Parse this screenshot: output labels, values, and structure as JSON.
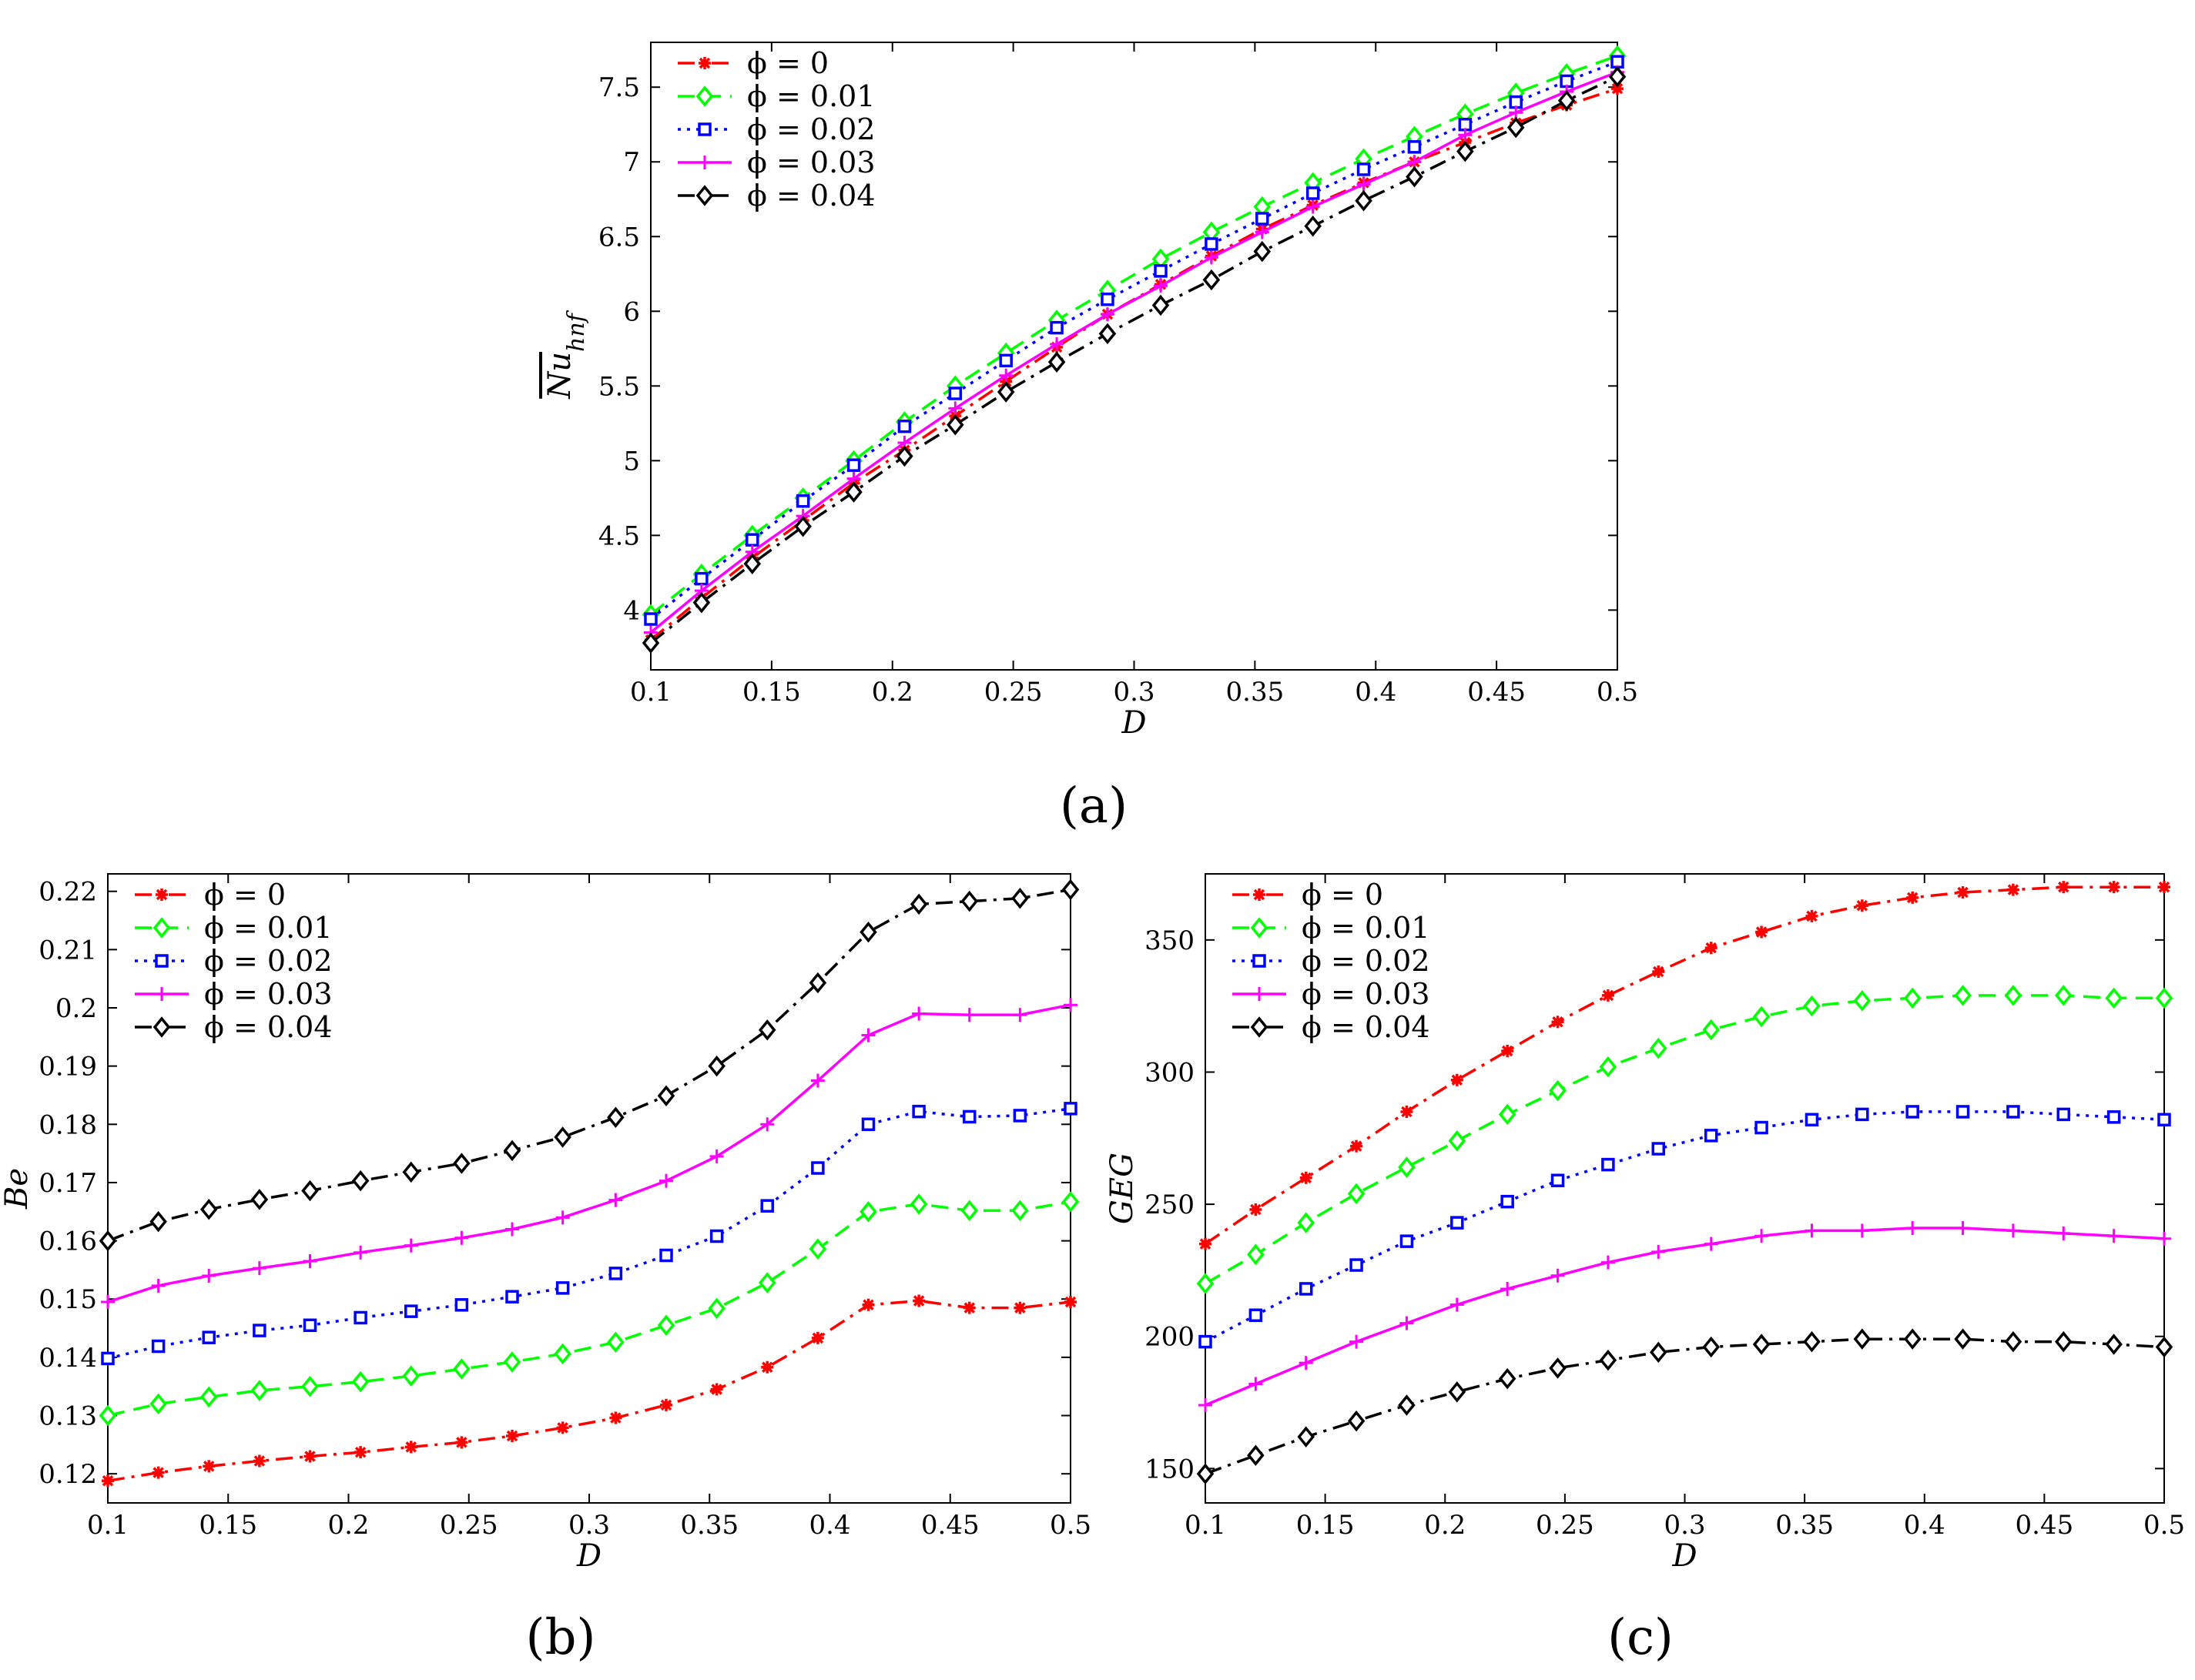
{
  "figure": {
    "legend_entries": [
      "ϕ = 0",
      "ϕ = 0.01",
      "ϕ = 0.02",
      "ϕ = 0.03",
      "ϕ = 0.04"
    ],
    "panel_labels": [
      "(a)",
      "(b)",
      "(c)"
    ]
  },
  "series_styles": [
    {
      "name": "ϕ = 0",
      "color": "#ff0000",
      "marker": "asterisk",
      "line": "dashdot"
    },
    {
      "name": "ϕ = 0.01",
      "color": "#00ff00",
      "marker": "diamond",
      "line": "dashed"
    },
    {
      "name": "ϕ = 0.02",
      "color": "#0000ff",
      "marker": "square",
      "line": "dotted"
    },
    {
      "name": "ϕ = 0.03",
      "color": "#ff00ff",
      "marker": "plus",
      "line": "solid"
    },
    {
      "name": "ϕ = 0.04",
      "color": "#000000",
      "marker": "diamond",
      "line": "dashdot"
    }
  ],
  "chart_data": [
    {
      "type": "line",
      "panel": "(a)",
      "title": "",
      "xlabel": "D",
      "ylabel": "Nu_hnf (overlined)",
      "ylabel_main": "Nu",
      "ylabel_sub": "hnf",
      "xlim": [
        0.1,
        0.5
      ],
      "ylim": [
        3.6,
        7.8
      ],
      "xticks": [
        0.1,
        0.15,
        0.2,
        0.25,
        0.3,
        0.35,
        0.4,
        0.45,
        0.5
      ],
      "xtick_labels": [
        "0.1",
        "0.15",
        "0.2",
        "0.25",
        "0.3",
        "0.35",
        "0.4",
        "0.45",
        "0.5"
      ],
      "yticks": [
        4,
        4.5,
        5,
        5.5,
        6,
        6.5,
        7,
        7.5
      ],
      "ytick_labels": [
        "4",
        "4.5",
        "5",
        "5.5",
        "6",
        "6.5",
        "7",
        "7.5"
      ],
      "legend": "top-left",
      "x": [
        0.1,
        0.121,
        0.142,
        0.163,
        0.184,
        0.205,
        0.226,
        0.247,
        0.268,
        0.289,
        0.311,
        0.332,
        0.353,
        0.374,
        0.395,
        0.416,
        0.437,
        0.458,
        0.479,
        0.5
      ],
      "series": [
        {
          "name": "ϕ = 0",
          "values": [
            3.8,
            4.08,
            4.35,
            4.6,
            4.85,
            5.07,
            5.3,
            5.53,
            5.76,
            5.98,
            6.18,
            6.37,
            6.55,
            6.71,
            6.86,
            7.0,
            7.13,
            7.26,
            7.38,
            7.49
          ]
        },
        {
          "name": "ϕ = 0.01",
          "values": [
            3.97,
            4.24,
            4.5,
            4.75,
            5.0,
            5.26,
            5.5,
            5.72,
            5.94,
            6.14,
            6.35,
            6.53,
            6.7,
            6.86,
            7.02,
            7.17,
            7.32,
            7.46,
            7.59,
            7.71
          ]
        },
        {
          "name": "ϕ = 0.02",
          "values": [
            3.94,
            4.21,
            4.47,
            4.73,
            4.97,
            5.23,
            5.45,
            5.67,
            5.89,
            6.08,
            6.27,
            6.45,
            6.62,
            6.79,
            6.95,
            7.1,
            7.25,
            7.4,
            7.54,
            7.67
          ]
        },
        {
          "name": "ϕ = 0.03",
          "values": [
            3.85,
            4.13,
            4.39,
            4.63,
            4.88,
            5.12,
            5.35,
            5.57,
            5.78,
            5.98,
            6.17,
            6.36,
            6.53,
            6.7,
            6.85,
            7.0,
            7.18,
            7.33,
            7.47,
            7.6
          ]
        },
        {
          "name": "ϕ = 0.04",
          "values": [
            3.78,
            4.05,
            4.31,
            4.56,
            4.79,
            5.03,
            5.24,
            5.46,
            5.66,
            5.85,
            6.04,
            6.21,
            6.4,
            6.57,
            6.74,
            6.9,
            7.07,
            7.23,
            7.41,
            7.57
          ]
        }
      ]
    },
    {
      "type": "line",
      "panel": "(b)",
      "title": "",
      "xlabel": "D",
      "ylabel": "Be",
      "xlim": [
        0.1,
        0.5
      ],
      "ylim": [
        0.115,
        0.223
      ],
      "xticks": [
        0.1,
        0.15,
        0.2,
        0.25,
        0.3,
        0.35,
        0.4,
        0.45,
        0.5
      ],
      "xtick_labels": [
        "0.1",
        "0.15",
        "0.2",
        "0.25",
        "0.3",
        "0.35",
        "0.4",
        "0.45",
        "0.5"
      ],
      "yticks": [
        0.12,
        0.13,
        0.14,
        0.15,
        0.16,
        0.17,
        0.18,
        0.19,
        0.2,
        0.21,
        0.22
      ],
      "ytick_labels": [
        "0.12",
        "0.13",
        "0.14",
        "0.15",
        "0.16",
        "0.17",
        "0.18",
        "0.19",
        "0.2",
        "0.21",
        "0.22"
      ],
      "legend": "top-left",
      "x": [
        0.1,
        0.121,
        0.142,
        0.163,
        0.184,
        0.205,
        0.226,
        0.247,
        0.268,
        0.289,
        0.311,
        0.332,
        0.353,
        0.374,
        0.395,
        0.416,
        0.437,
        0.458,
        0.479,
        0.5
      ],
      "series": [
        {
          "name": "ϕ = 0",
          "values": [
            0.1188,
            0.1202,
            0.1213,
            0.1222,
            0.123,
            0.1237,
            0.1246,
            0.1254,
            0.1265,
            0.1279,
            0.1296,
            0.1318,
            0.1345,
            0.1383,
            0.1433,
            0.149,
            0.1497,
            0.1485,
            0.1485,
            0.1495
          ]
        },
        {
          "name": "ϕ = 0.01",
          "values": [
            0.13,
            0.132,
            0.1332,
            0.1343,
            0.135,
            0.1358,
            0.1368,
            0.138,
            0.1392,
            0.1406,
            0.1426,
            0.1455,
            0.1484,
            0.1528,
            0.1586,
            0.165,
            0.1663,
            0.1652,
            0.1652,
            0.1667
          ]
        },
        {
          "name": "ϕ = 0.02",
          "values": [
            0.1398,
            0.1419,
            0.1434,
            0.1446,
            0.1455,
            0.1468,
            0.1479,
            0.149,
            0.1504,
            0.1519,
            0.1544,
            0.1575,
            0.1608,
            0.166,
            0.1725,
            0.18,
            0.1822,
            0.1813,
            0.1815,
            0.1827
          ]
        },
        {
          "name": "ϕ = 0.03",
          "values": [
            0.1495,
            0.1523,
            0.154,
            0.1553,
            0.1565,
            0.158,
            0.1592,
            0.1605,
            0.162,
            0.164,
            0.167,
            0.1703,
            0.1745,
            0.18,
            0.1875,
            0.1953,
            0.199,
            0.1988,
            0.1988,
            0.2005
          ]
        },
        {
          "name": "ϕ = 0.04",
          "values": [
            0.16,
            0.1633,
            0.1654,
            0.1671,
            0.1686,
            0.1703,
            0.1718,
            0.1733,
            0.1755,
            0.1778,
            0.1812,
            0.1849,
            0.19,
            0.1962,
            0.2043,
            0.213,
            0.2178,
            0.2183,
            0.2188,
            0.2203
          ]
        }
      ]
    },
    {
      "type": "line",
      "panel": "(c)",
      "title": "",
      "xlabel": "D",
      "ylabel": "GEG",
      "xlim": [
        0.1,
        0.5
      ],
      "ylim": [
        137,
        375
      ],
      "xticks": [
        0.1,
        0.15,
        0.2,
        0.25,
        0.3,
        0.35,
        0.4,
        0.45,
        0.5
      ],
      "xtick_labels": [
        "0.1",
        "0.15",
        "0.2",
        "0.25",
        "0.3",
        "0.35",
        "0.4",
        "0.45",
        "0.5"
      ],
      "yticks": [
        150,
        200,
        250,
        300,
        350
      ],
      "ytick_labels": [
        "150",
        "200",
        "250",
        "300",
        "350"
      ],
      "legend": "top-left",
      "x": [
        0.1,
        0.121,
        0.142,
        0.163,
        0.184,
        0.205,
        0.226,
        0.247,
        0.268,
        0.289,
        0.311,
        0.332,
        0.353,
        0.374,
        0.395,
        0.416,
        0.437,
        0.458,
        0.479,
        0.5
      ],
      "series": [
        {
          "name": "ϕ = 0",
          "values": [
            235,
            248,
            260,
            272,
            285,
            297,
            308,
            319,
            329,
            338,
            347,
            353,
            359,
            363,
            366,
            368,
            369,
            370,
            370,
            370
          ]
        },
        {
          "name": "ϕ = 0.01",
          "values": [
            220,
            231,
            243,
            254,
            264,
            274,
            284,
            293,
            302,
            309,
            316,
            321,
            325,
            327,
            328,
            329,
            329,
            329,
            328,
            328
          ]
        },
        {
          "name": "ϕ = 0.02",
          "values": [
            198,
            208,
            218,
            227,
            236,
            243,
            251,
            259,
            265,
            271,
            276,
            279,
            282,
            284,
            285,
            285,
            285,
            284,
            283,
            282
          ]
        },
        {
          "name": "ϕ = 0.03",
          "values": [
            174,
            182,
            190,
            198,
            205,
            212,
            218,
            223,
            228,
            232,
            235,
            238,
            240,
            240,
            241,
            241,
            240,
            239,
            238,
            237
          ]
        },
        {
          "name": "ϕ = 0.04",
          "values": [
            148,
            155,
            162,
            168,
            174,
            179,
            184,
            188,
            191,
            194,
            196,
            197,
            198,
            199,
            199,
            199,
            198,
            198,
            197,
            196
          ]
        }
      ]
    }
  ]
}
